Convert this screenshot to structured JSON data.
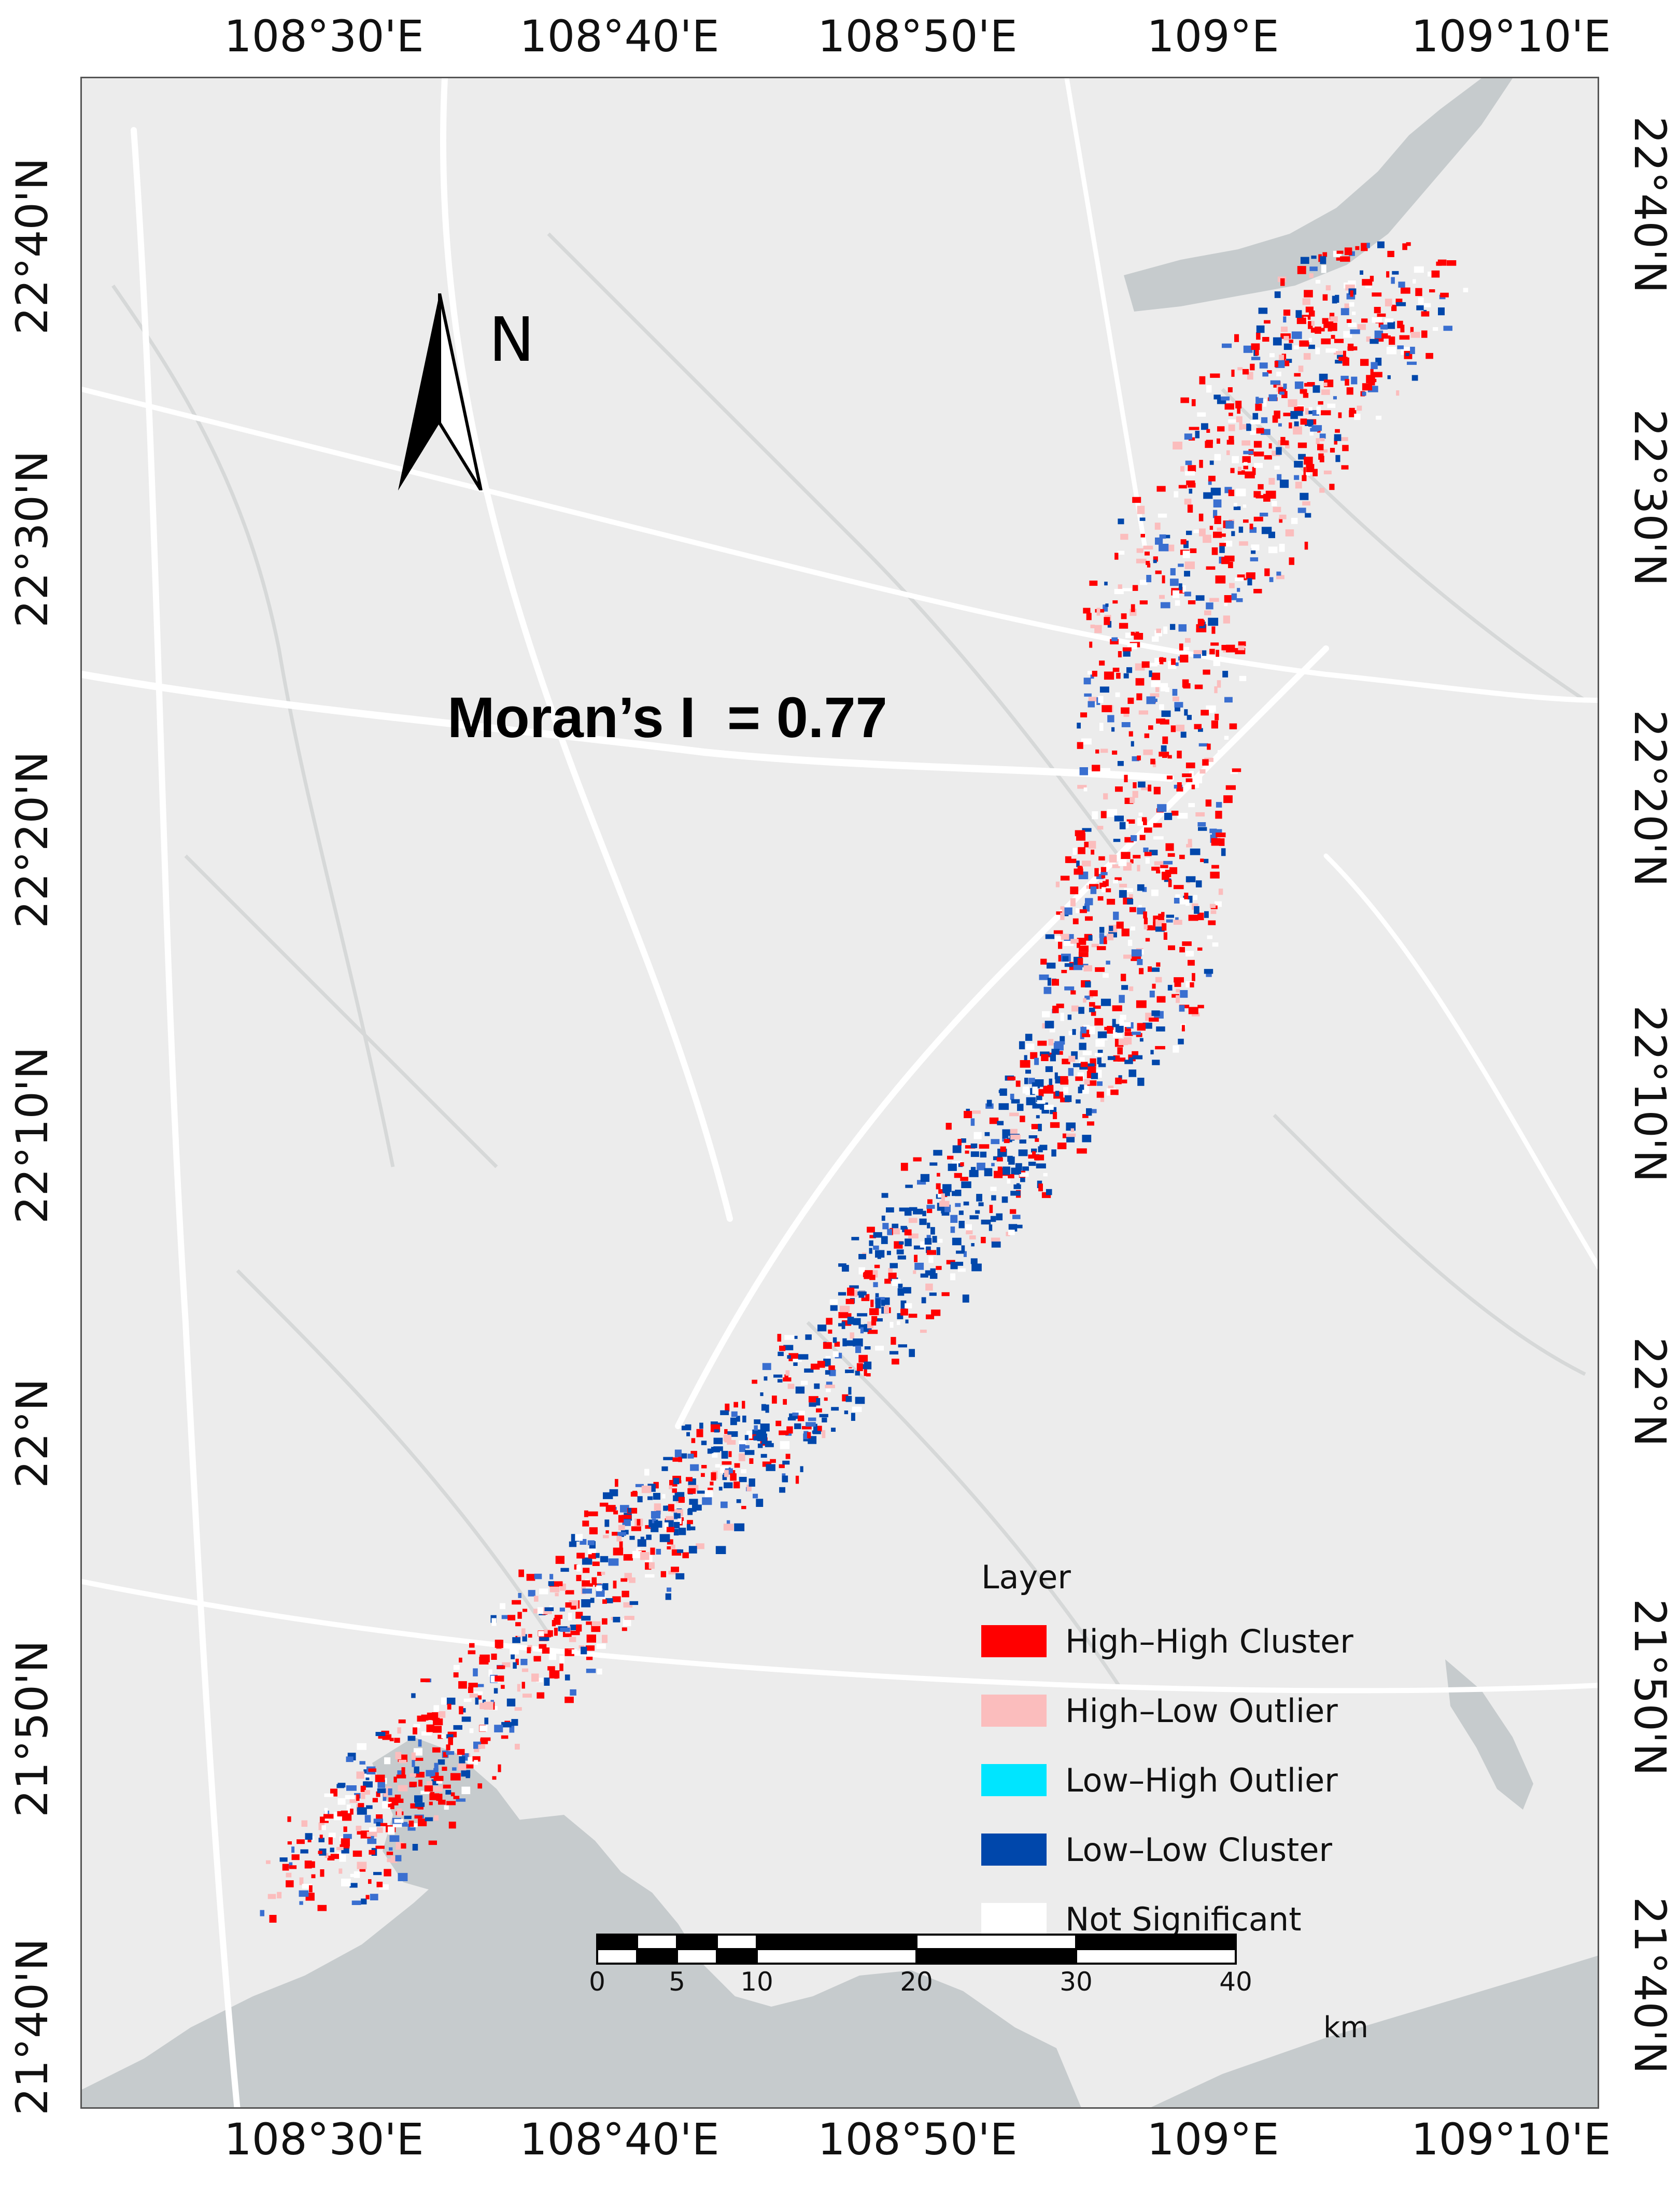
{
  "grid": {
    "lon_labels": [
      "108°30'E",
      "108°40'E",
      "108°50'E",
      "109°E",
      "109°10'E"
    ],
    "lat_labels": [
      "22°40'N",
      "22°30'N",
      "22°20'N",
      "22°10'N",
      "22°N",
      "21°50'N",
      "21°40'N"
    ]
  },
  "north_arrow": {
    "label": "N"
  },
  "statistic": {
    "text": "Moran’s I  = 0.77",
    "value": 0.77
  },
  "legend": {
    "title": "Layer",
    "items": [
      {
        "label": "High–High Cluster",
        "color": "#ff0000"
      },
      {
        "label": "High–Low Outlier",
        "color": "#fbbdbd"
      },
      {
        "label": "Low–High Outlier",
        "color": "#00e5ff"
      },
      {
        "label": "Low–Low Cluster",
        "color": "#0047ab"
      },
      {
        "label": "Not Significant",
        "color": "#ffffff"
      }
    ]
  },
  "scale_bar": {
    "labels": [
      "0",
      "5",
      "10",
      "20",
      "30",
      "40"
    ],
    "unit": "km"
  },
  "colors": {
    "background": "#ececec",
    "water": "#c6cbcd",
    "roads": "#ffffff"
  }
}
